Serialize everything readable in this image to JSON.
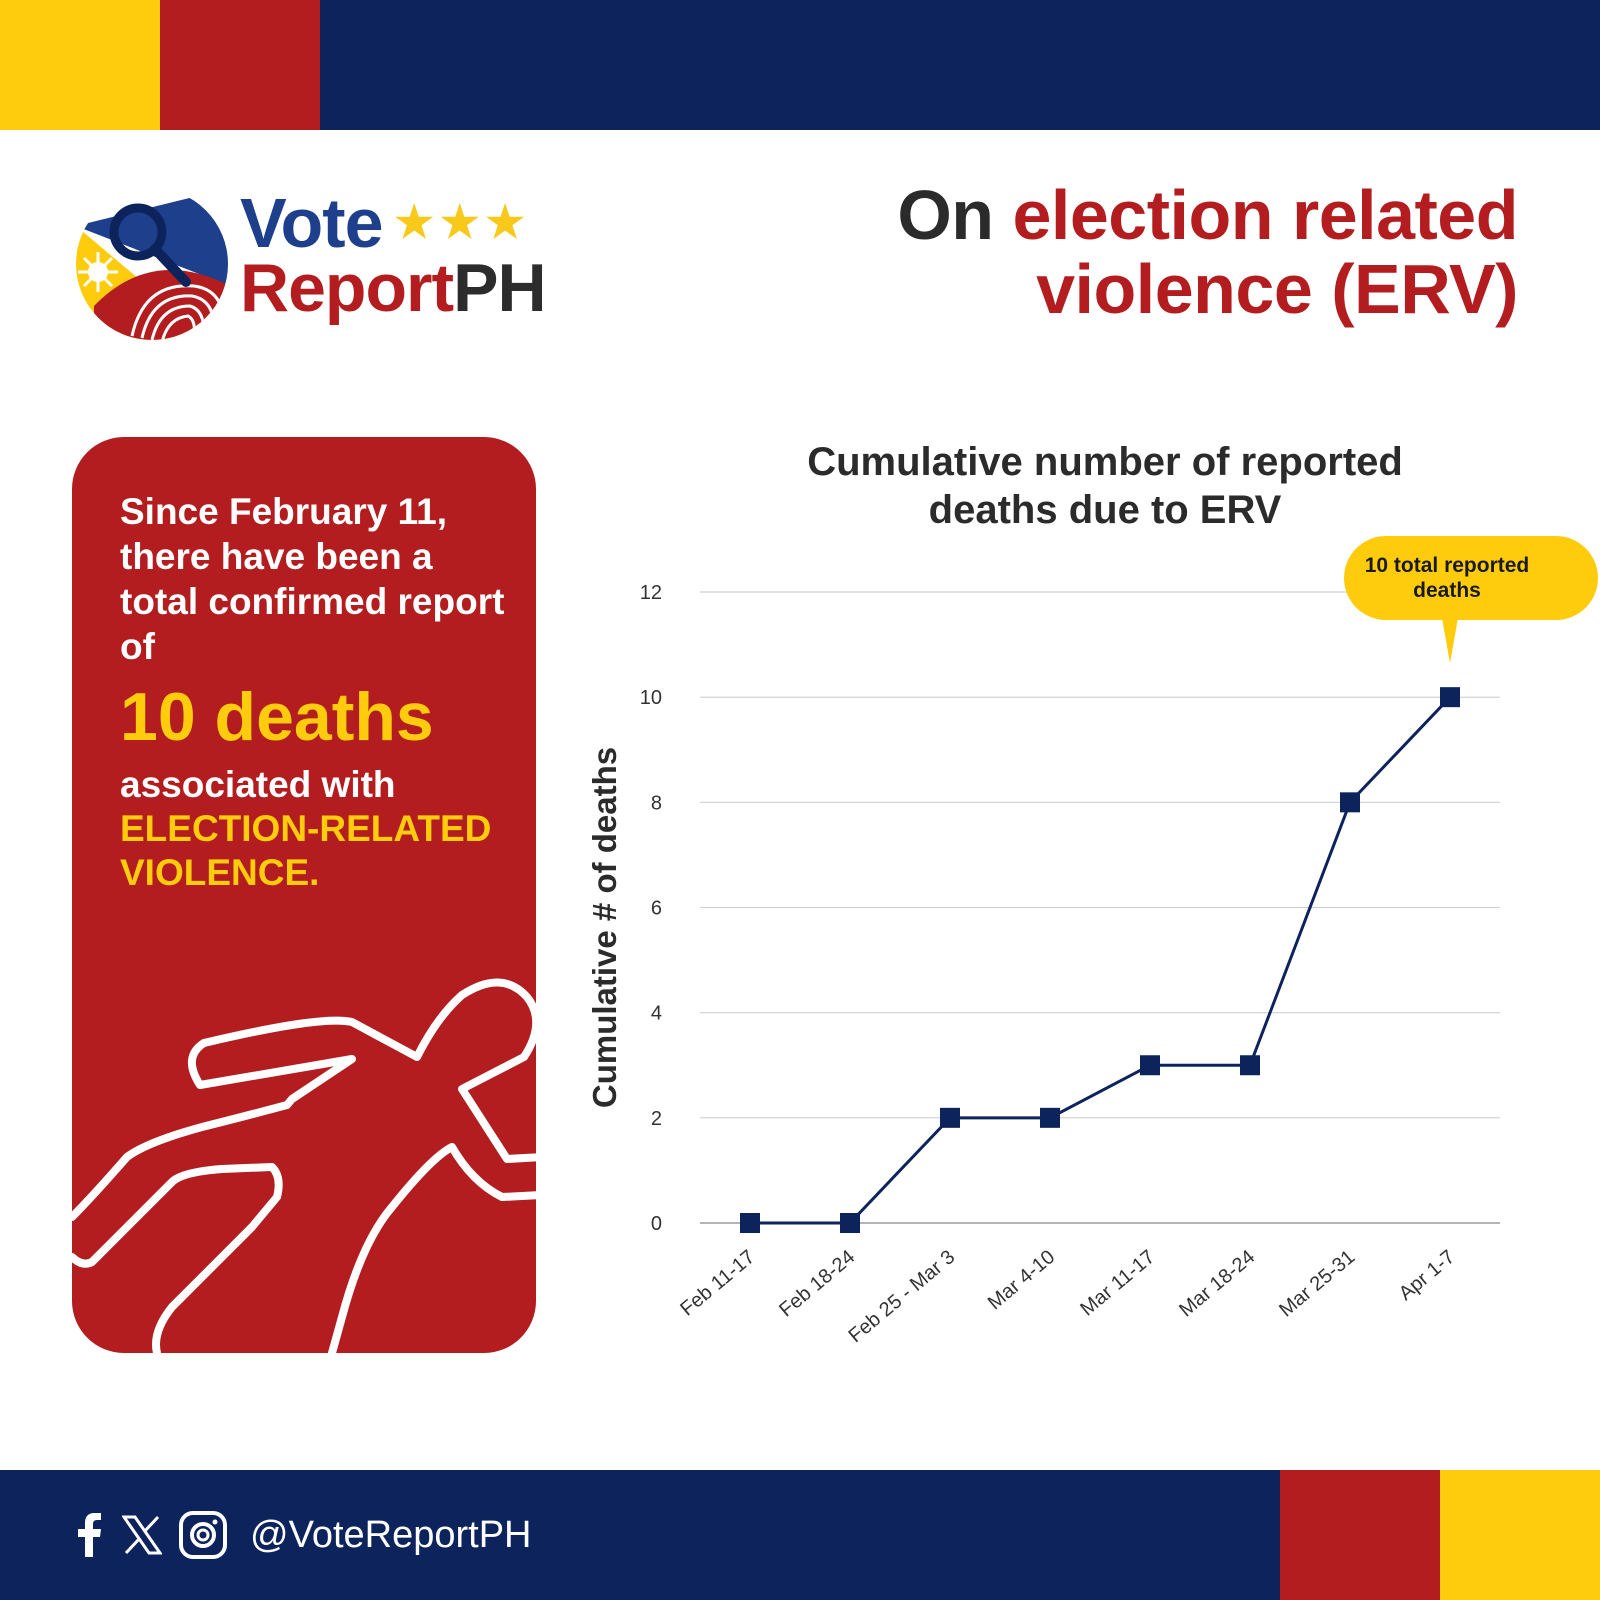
{
  "brand": {
    "logo_word1": "Vote",
    "logo_stars": "★★★",
    "logo_word2a": "Report",
    "logo_word2b": "PH",
    "colors": {
      "navy": "#0d235c",
      "red": "#b31d1f",
      "yellow": "#fecc0c",
      "blue": "#1d3f8c"
    }
  },
  "header": {
    "title_prefix": "On ",
    "title_highlight": "election related violence (ERV)"
  },
  "card": {
    "intro": "Since February 11, there have been a total confirmed report of",
    "big": "10 deaths",
    "assoc": "associated with",
    "erv_line1": "ELECTION-RELATED",
    "erv_line2": "VIOLENCE."
  },
  "chart_data": {
    "type": "line",
    "title_line1": "Cumulative number of reported",
    "title_line2": "deaths due to ERV",
    "xlabel": "",
    "ylabel": "Cumulative # of deaths",
    "categories": [
      "Feb 11-17",
      "Feb 18-24",
      "Feb 25 - Mar 3",
      "Mar 4-10",
      "Mar 11-17",
      "Mar 18-24",
      "Mar 25-31",
      "Apr 1-7"
    ],
    "series": [
      {
        "values": [
          0,
          0,
          2,
          2,
          3,
          3,
          8,
          10
        ]
      }
    ],
    "ylim": [
      0,
      12
    ],
    "yticks": [
      0,
      2,
      4,
      6,
      8,
      10,
      12
    ],
    "grid": true,
    "marker": "square",
    "line_color": "#0d235c",
    "callout": {
      "line1": "10  total reported",
      "line2": "deaths",
      "color": "#fecc0c"
    }
  },
  "footer": {
    "handle": "@VoteReportPH",
    "icons": [
      "facebook-icon",
      "x-icon",
      "instagram-icon"
    ]
  }
}
